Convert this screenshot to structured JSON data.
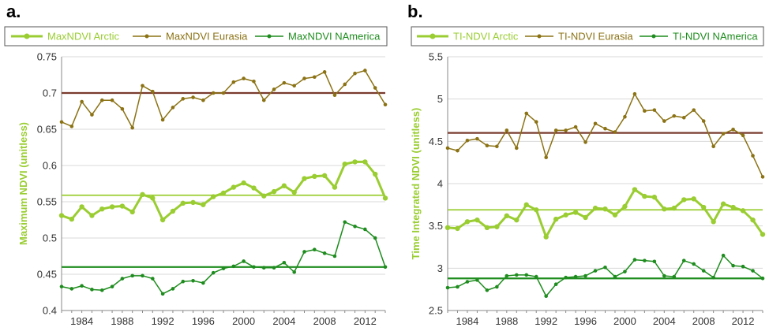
{
  "chart_data": [
    {
      "type": "line",
      "panel_label": "a.",
      "ylabel": "Maximum NDVI (unitless)",
      "ylabel_color": "#9ACD32",
      "ylim": [
        0.4,
        0.75
      ],
      "yticks": [
        "0.4",
        "0.45",
        "0.5",
        "0.55",
        "0.6",
        "0.65",
        "0.7",
        "0.75"
      ],
      "xlim": [
        1982,
        2014
      ],
      "xticks": [
        1984,
        1988,
        1992,
        1996,
        2000,
        2004,
        2008,
        2012
      ],
      "grid": "horizontal",
      "legend_placement": "top",
      "x": [
        1982,
        1983,
        1984,
        1985,
        1986,
        1987,
        1988,
        1989,
        1990,
        1991,
        1992,
        1993,
        1994,
        1995,
        1996,
        1997,
        1998,
        1999,
        2000,
        2001,
        2002,
        2003,
        2004,
        2005,
        2006,
        2007,
        2008,
        2009,
        2010,
        2011,
        2012,
        2013,
        2014
      ],
      "series": [
        {
          "name": "MaxNDVI Arctic",
          "color": "#9ACD32",
          "width": 3,
          "mean": 0.559,
          "values": [
            0.531,
            0.526,
            0.543,
            0.531,
            0.54,
            0.543,
            0.544,
            0.536,
            0.56,
            0.555,
            0.525,
            0.537,
            0.548,
            0.549,
            0.546,
            0.557,
            0.562,
            0.57,
            0.576,
            0.569,
            0.558,
            0.564,
            0.572,
            0.563,
            0.582,
            0.585,
            0.586,
            0.57,
            0.602,
            0.605,
            0.605,
            0.588,
            0.555
          ]
        },
        {
          "name": "MaxNDVI Eurasia",
          "color": "#8B7214",
          "width": 1.5,
          "mean": 0.7,
          "values": [
            0.66,
            0.654,
            0.688,
            0.67,
            0.69,
            0.69,
            0.678,
            0.652,
            0.71,
            0.702,
            0.663,
            0.68,
            0.692,
            0.694,
            0.69,
            0.7,
            0.7,
            0.715,
            0.72,
            0.716,
            0.69,
            0.705,
            0.714,
            0.71,
            0.72,
            0.722,
            0.729,
            0.697,
            0.712,
            0.727,
            0.731,
            0.707,
            0.684
          ]
        },
        {
          "name": "MaxNDVI NAmerica",
          "color": "#1E8C1E",
          "width": 1.5,
          "mean": 0.46,
          "values": [
            0.433,
            0.43,
            0.434,
            0.429,
            0.428,
            0.433,
            0.444,
            0.448,
            0.448,
            0.444,
            0.423,
            0.43,
            0.44,
            0.441,
            0.438,
            0.452,
            0.458,
            0.461,
            0.468,
            0.46,
            0.459,
            0.459,
            0.466,
            0.453,
            0.481,
            0.484,
            0.479,
            0.475,
            0.522,
            0.516,
            0.512,
            0.5,
            0.46
          ]
        }
      ],
      "mean_line_colors": [
        "#9ACD32",
        "#7A3B2E",
        "#1E8C1E"
      ]
    },
    {
      "type": "line",
      "panel_label": "b.",
      "ylabel": "Time Integrated NDVI (unitless)",
      "ylabel_color": "#9ACD32",
      "ylim": [
        2.5,
        5.5
      ],
      "yticks": [
        "2.5",
        "3",
        "3.5",
        "4",
        "4.5",
        "5",
        "5.5"
      ],
      "xlim": [
        1982,
        2014
      ],
      "xticks": [
        1984,
        1988,
        1992,
        1996,
        2000,
        2004,
        2008,
        2012
      ],
      "grid": "horizontal",
      "legend_placement": "top",
      "x": [
        1982,
        1983,
        1984,
        1985,
        1986,
        1987,
        1988,
        1989,
        1990,
        1991,
        1992,
        1993,
        1994,
        1995,
        1996,
        1997,
        1998,
        1999,
        2000,
        2001,
        2002,
        2003,
        2004,
        2005,
        2006,
        2007,
        2008,
        2009,
        2010,
        2011,
        2012,
        2013,
        2014
      ],
      "series": [
        {
          "name": "TI-NDVI Arctic",
          "color": "#9ACD32",
          "width": 3,
          "mean": 3.69,
          "values": [
            3.48,
            3.47,
            3.55,
            3.57,
            3.48,
            3.49,
            3.62,
            3.57,
            3.75,
            3.69,
            3.37,
            3.58,
            3.63,
            3.66,
            3.6,
            3.71,
            3.7,
            3.63,
            3.73,
            3.93,
            3.85,
            3.84,
            3.7,
            3.71,
            3.81,
            3.82,
            3.72,
            3.55,
            3.76,
            3.72,
            3.68,
            3.57,
            3.4
          ]
        },
        {
          "name": "TI-NDVI Eurasia",
          "color": "#8B7214",
          "width": 1.5,
          "mean": 4.6,
          "values": [
            4.42,
            4.39,
            4.51,
            4.53,
            4.45,
            4.44,
            4.63,
            4.42,
            4.83,
            4.73,
            4.31,
            4.63,
            4.63,
            4.67,
            4.49,
            4.71,
            4.65,
            4.61,
            4.79,
            5.06,
            4.86,
            4.87,
            4.74,
            4.8,
            4.78,
            4.87,
            4.74,
            4.44,
            4.59,
            4.64,
            4.57,
            4.33,
            4.08
          ]
        },
        {
          "name": "TI-NDVI NAmerica",
          "color": "#1E8C1E",
          "width": 1.5,
          "mean": 2.88,
          "values": [
            2.77,
            2.78,
            2.84,
            2.86,
            2.74,
            2.78,
            2.91,
            2.92,
            2.92,
            2.9,
            2.67,
            2.81,
            2.89,
            2.9,
            2.91,
            2.97,
            3.01,
            2.9,
            2.96,
            3.1,
            3.09,
            3.08,
            2.91,
            2.9,
            3.09,
            3.05,
            2.97,
            2.89,
            3.15,
            3.03,
            3.02,
            2.97,
            2.88
          ]
        }
      ],
      "mean_line_colors": [
        "#9ACD32",
        "#7A3B2E",
        "#1E8C1E"
      ]
    }
  ]
}
